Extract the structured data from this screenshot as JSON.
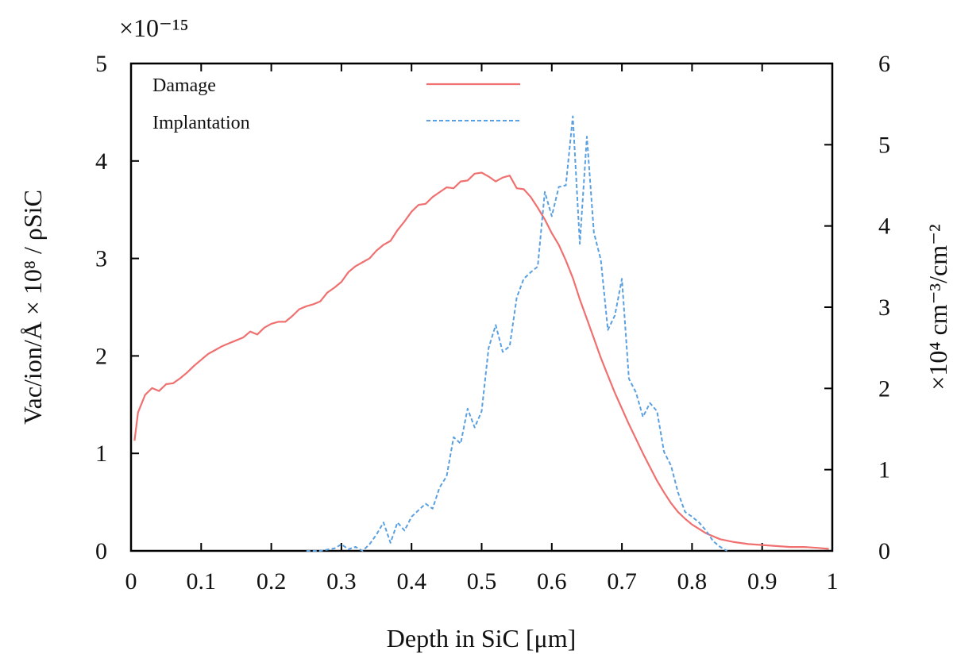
{
  "chart_data": {
    "type": "line",
    "title": "",
    "xlabel": "Depth in SiC [μm]",
    "ylabel_left": "Vac/ion/Å × 10⁸ / ρSiC",
    "ylabel_right": "×10⁴ cm⁻³/cm⁻²",
    "left_multiplier": "×10⁻¹⁵",
    "xlim": [
      0,
      1
    ],
    "ylim_left": [
      0,
      5
    ],
    "ylim_right": [
      0,
      6
    ],
    "x_ticks": [
      "0",
      "0.1",
      "0.2",
      "0.3",
      "0.4",
      "0.5",
      "0.6",
      "0.7",
      "0.8",
      "0.9",
      "1"
    ],
    "y_left_ticks": [
      "0",
      "1",
      "2",
      "3",
      "4",
      "5"
    ],
    "y_right_ticks": [
      "0",
      "1",
      "2",
      "3",
      "4",
      "5",
      "6"
    ],
    "legend_position": "top-left",
    "grid": false,
    "series": [
      {
        "name": "Damage",
        "axis": "left",
        "color": "#f07070",
        "style": "solid",
        "x": [
          0.005,
          0.01,
          0.02,
          0.03,
          0.04,
          0.05,
          0.06,
          0.07,
          0.08,
          0.09,
          0.1,
          0.11,
          0.12,
          0.13,
          0.14,
          0.15,
          0.16,
          0.17,
          0.18,
          0.19,
          0.2,
          0.21,
          0.22,
          0.23,
          0.24,
          0.25,
          0.26,
          0.27,
          0.28,
          0.29,
          0.3,
          0.31,
          0.32,
          0.33,
          0.34,
          0.35,
          0.36,
          0.37,
          0.38,
          0.39,
          0.4,
          0.41,
          0.42,
          0.43,
          0.44,
          0.45,
          0.46,
          0.47,
          0.48,
          0.49,
          0.5,
          0.51,
          0.52,
          0.53,
          0.54,
          0.55,
          0.56,
          0.57,
          0.58,
          0.59,
          0.6,
          0.61,
          0.62,
          0.63,
          0.64,
          0.65,
          0.66,
          0.67,
          0.68,
          0.69,
          0.7,
          0.71,
          0.72,
          0.73,
          0.74,
          0.75,
          0.76,
          0.77,
          0.78,
          0.79,
          0.8,
          0.82,
          0.84,
          0.86,
          0.88,
          0.9,
          0.92,
          0.94,
          0.96,
          0.98,
          0.995
        ],
        "values": [
          1.13,
          1.42,
          1.6,
          1.67,
          1.64,
          1.71,
          1.72,
          1.77,
          1.83,
          1.9,
          1.96,
          2.02,
          2.06,
          2.1,
          2.13,
          2.16,
          2.19,
          2.25,
          2.22,
          2.29,
          2.33,
          2.35,
          2.35,
          2.41,
          2.48,
          2.51,
          2.53,
          2.56,
          2.65,
          2.7,
          2.76,
          2.86,
          2.92,
          2.96,
          3.0,
          3.08,
          3.14,
          3.18,
          3.29,
          3.38,
          3.48,
          3.55,
          3.56,
          3.63,
          3.68,
          3.73,
          3.72,
          3.79,
          3.8,
          3.87,
          3.88,
          3.84,
          3.79,
          3.83,
          3.85,
          3.72,
          3.71,
          3.63,
          3.52,
          3.4,
          3.26,
          3.14,
          2.98,
          2.8,
          2.58,
          2.38,
          2.18,
          1.98,
          1.8,
          1.62,
          1.46,
          1.3,
          1.15,
          1.0,
          0.86,
          0.72,
          0.6,
          0.49,
          0.4,
          0.33,
          0.27,
          0.18,
          0.12,
          0.09,
          0.07,
          0.06,
          0.05,
          0.04,
          0.04,
          0.03,
          0.02
        ]
      },
      {
        "name": "Implantation",
        "axis": "right",
        "color": "#5aa0e0",
        "style": "dashed",
        "x": [
          0.25,
          0.27,
          0.29,
          0.3,
          0.31,
          0.32,
          0.33,
          0.34,
          0.35,
          0.36,
          0.37,
          0.38,
          0.39,
          0.4,
          0.41,
          0.42,
          0.43,
          0.44,
          0.45,
          0.46,
          0.47,
          0.48,
          0.49,
          0.5,
          0.51,
          0.52,
          0.53,
          0.54,
          0.55,
          0.56,
          0.57,
          0.58,
          0.59,
          0.6,
          0.61,
          0.62,
          0.63,
          0.64,
          0.65,
          0.66,
          0.67,
          0.68,
          0.69,
          0.7,
          0.71,
          0.72,
          0.73,
          0.74,
          0.75,
          0.76,
          0.77,
          0.78,
          0.79,
          0.8,
          0.81,
          0.82,
          0.83,
          0.84,
          0.85
        ],
        "values": [
          0.0,
          0.0,
          0.03,
          0.08,
          0.02,
          0.05,
          0.0,
          0.08,
          0.2,
          0.35,
          0.1,
          0.35,
          0.25,
          0.42,
          0.5,
          0.58,
          0.52,
          0.78,
          0.92,
          1.4,
          1.32,
          1.75,
          1.52,
          1.72,
          2.5,
          2.78,
          2.45,
          2.52,
          3.12,
          3.35,
          3.43,
          3.5,
          4.42,
          4.12,
          4.48,
          4.5,
          5.35,
          3.78,
          5.1,
          3.92,
          3.58,
          2.72,
          2.9,
          3.35,
          2.12,
          1.95,
          1.65,
          1.82,
          1.72,
          1.22,
          1.05,
          0.72,
          0.48,
          0.42,
          0.35,
          0.25,
          0.12,
          0.05,
          0.0
        ]
      }
    ]
  }
}
